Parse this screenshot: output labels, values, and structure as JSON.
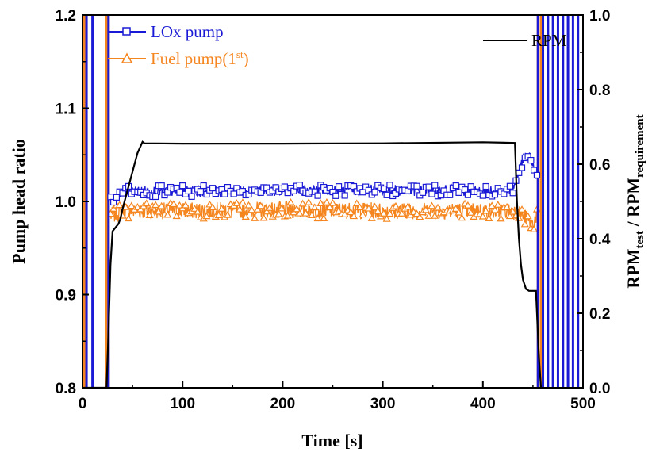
{
  "chart_data": {
    "type": "line",
    "xlabel": "Time [s]",
    "ylabel_left": "Pump head ratio",
    "ylabel_right": {
      "main": "RPM",
      "sub1": "test",
      "sep": " / RPM",
      "sub2": "requirement"
    },
    "xlim": [
      0,
      500
    ],
    "ylim_left": [
      0.8,
      1.2
    ],
    "ylim_right": [
      0.0,
      1.0
    ],
    "xticks": [
      0,
      100,
      200,
      300,
      400,
      500
    ],
    "yticks_left": [
      0.8,
      0.9,
      1.0,
      1.1,
      1.2
    ],
    "yticks_right": [
      0.0,
      0.2,
      0.4,
      0.6,
      0.8,
      1.0
    ],
    "yticks_right_labels": [
      "0.0",
      "0.2",
      "0.4",
      "0.6",
      "0.8",
      "1.0"
    ],
    "grid": false,
    "legend": [
      {
        "label": "LOx pump",
        "color": "#1a1ad6",
        "marker": "square",
        "placement": "top-left"
      },
      {
        "label": "Fuel pump(1",
        "sup": "st",
        "label_end": ")",
        "color": "#f5861f",
        "marker": "triangle",
        "placement": "top-left"
      },
      {
        "label": "RPM",
        "color": "#000000",
        "marker": "none",
        "placement": "top-right"
      }
    ],
    "series": [
      {
        "name": "LOx pump",
        "axis": "left",
        "color": "#1a1ad6",
        "mean_profile": {
          "x": [
            30,
            40,
            60,
            100,
            200,
            300,
            400,
            430,
            435,
            440,
            445,
            450,
            455
          ],
          "y": [
            1.0,
            1.01,
            1.011,
            1.011,
            1.012,
            1.012,
            1.011,
            1.012,
            1.03,
            1.045,
            1.05,
            1.04,
            1.02
          ]
        },
        "noise_amplitude": 0.006,
        "spikes_x": [
          4,
          10,
          26,
          455,
          460,
          465,
          470,
          475,
          480,
          485,
          490,
          495
        ]
      },
      {
        "name": "Fuel pump(1st)",
        "axis": "left",
        "color": "#f5861f",
        "mean_profile": {
          "x": [
            30,
            40,
            60,
            100,
            200,
            300,
            400,
            430,
            440,
            450,
            455
          ],
          "y": [
            0.985,
            0.99,
            0.99,
            0.99,
            0.991,
            0.99,
            0.99,
            0.99,
            0.985,
            0.975,
            0.99
          ]
        },
        "noise_amplitude": 0.009,
        "spikes_x": [
          2,
          4,
          24,
          26,
          455,
          458
        ]
      },
      {
        "name": "RPM",
        "axis": "right",
        "color": "#000000",
        "x": [
          0,
          24,
          26,
          28,
          30,
          33,
          36,
          38,
          40,
          45,
          50,
          55,
          60,
          62,
          100,
          200,
          300,
          400,
          432,
          434,
          436,
          438,
          440,
          443,
          446,
          450,
          453,
          456,
          458
        ],
        "y": [
          0.0,
          0.0,
          0.15,
          0.33,
          0.42,
          0.43,
          0.44,
          0.455,
          0.48,
          0.53,
          0.58,
          0.63,
          0.66,
          0.656,
          0.655,
          0.655,
          0.656,
          0.659,
          0.657,
          0.5,
          0.4,
          0.33,
          0.29,
          0.265,
          0.26,
          0.26,
          0.26,
          0.08,
          0.0
        ]
      }
    ]
  }
}
